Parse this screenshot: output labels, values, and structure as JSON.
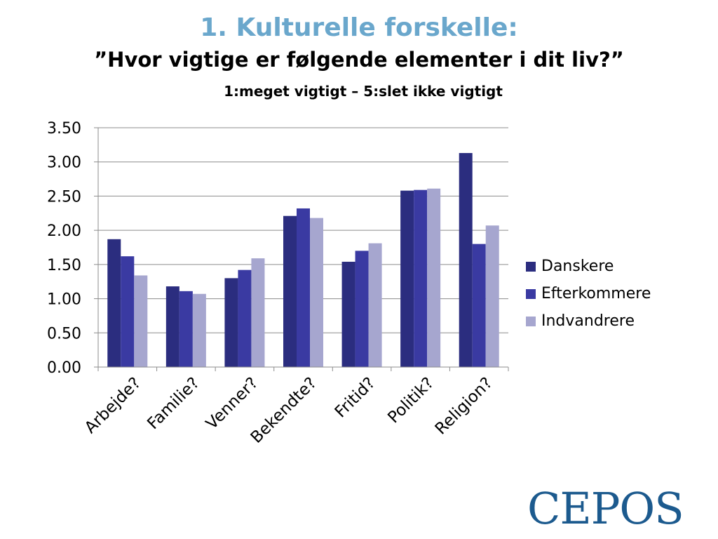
{
  "header": {
    "title": "1. Kulturelle forskelle:",
    "subtitle": "”Hvor vigtige er følgende elementer i dit liv?”",
    "scale_note": "1:meget vigtigt – 5:slet ikke vigtigt"
  },
  "logo": {
    "text": "CEPOS",
    "color": "#1c5a8e"
  },
  "chart_data": {
    "type": "bar",
    "title": "",
    "xlabel": "",
    "ylabel": "",
    "ylim": [
      0,
      3.5
    ],
    "yticks": [
      "0.00",
      "0.50",
      "1.00",
      "1.50",
      "2.00",
      "2.50",
      "3.00",
      "3.50"
    ],
    "grid": true,
    "legend_position": "right",
    "categories": [
      "Arbejde?",
      "Familie?",
      "Venner?",
      "Bekendte?",
      "Fritid?",
      "Politik?",
      "Religion?"
    ],
    "series": [
      {
        "name": "Danskere",
        "color": "#2b2d7f",
        "values": [
          1.87,
          1.18,
          1.3,
          2.21,
          1.54,
          2.58,
          3.13
        ]
      },
      {
        "name": "Efterkommere",
        "color": "#3a3aa2",
        "values": [
          1.62,
          1.11,
          1.42,
          2.32,
          1.7,
          2.59,
          1.8
        ]
      },
      {
        "name": "Indvandrere",
        "color": "#a6a6cf",
        "values": [
          1.34,
          1.07,
          1.59,
          2.18,
          1.81,
          2.61,
          2.07
        ]
      }
    ]
  }
}
